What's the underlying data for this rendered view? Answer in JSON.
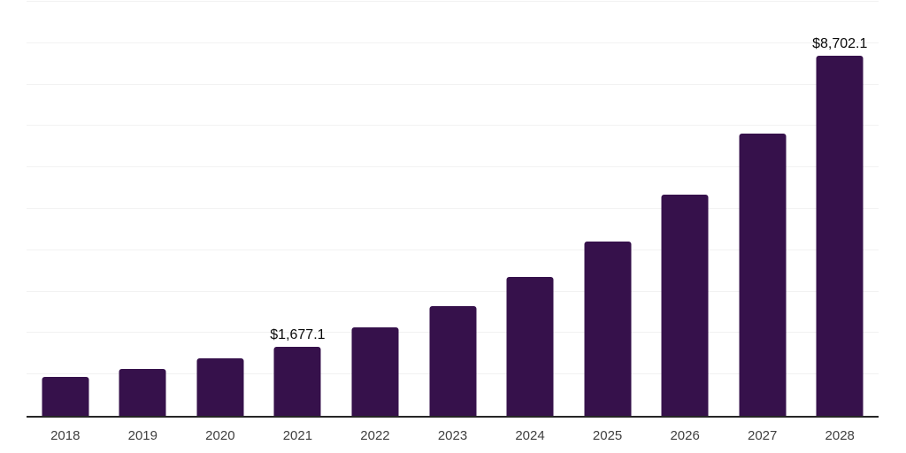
{
  "chart_data": {
    "type": "bar",
    "title": "",
    "xlabel": "",
    "ylabel": "",
    "categories": [
      "2018",
      "2019",
      "2020",
      "2021",
      "2022",
      "2023",
      "2024",
      "2025",
      "2026",
      "2027",
      "2028"
    ],
    "values": [
      940,
      1130,
      1390,
      1677.1,
      2130,
      2660,
      3350,
      4220,
      5350,
      6810,
      8702.1
    ],
    "data_labels": [
      "",
      "",
      "",
      "$1,677.1",
      "",
      "",
      "",
      "",
      "",
      "",
      "$8,702.1"
    ],
    "ylim": [
      0,
      10000
    ],
    "gridline_step": 1000,
    "grid": "horizontal-only",
    "y_axis_tick_labels_visible": false,
    "legend": "none",
    "colors": {
      "bar": "#36114B",
      "gridline": "#f2f2f2",
      "axis_line": "#262626",
      "tick_label": "#404040",
      "data_label": "#0a0a0a",
      "background": "#ffffff"
    }
  }
}
